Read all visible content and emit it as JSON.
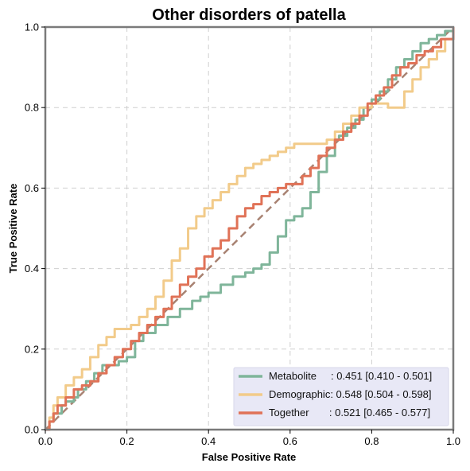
{
  "chart_data": {
    "type": "line",
    "title": "Other disorders of patella",
    "xlabel": "False Positive Rate",
    "ylabel": "True Positive Rate",
    "xlim": [
      0,
      1
    ],
    "ylim": [
      0,
      1
    ],
    "xticks": [
      "0.0",
      "0.2",
      "0.4",
      "0.6",
      "0.8",
      "1.0"
    ],
    "yticks": [
      "0.0",
      "0.2",
      "0.4",
      "0.6",
      "0.8",
      "1.0"
    ],
    "grid": true,
    "legend_position": "lower-right",
    "diagonal": {
      "x": [
        0,
        1
      ],
      "y": [
        0,
        1
      ],
      "color": "#a88272",
      "style": "dashed"
    },
    "series": [
      {
        "name": "Metabolite",
        "legend_text": "Metabolite     : 0.451 [0.410 - 0.501]",
        "color": "#7fb59a",
        "x": [
          0.0,
          0.01,
          0.02,
          0.04,
          0.05,
          0.07,
          0.08,
          0.1,
          0.12,
          0.14,
          0.16,
          0.18,
          0.2,
          0.22,
          0.24,
          0.27,
          0.3,
          0.33,
          0.36,
          0.38,
          0.4,
          0.43,
          0.46,
          0.49,
          0.51,
          0.53,
          0.55,
          0.57,
          0.59,
          0.61,
          0.63,
          0.65,
          0.67,
          0.69,
          0.71,
          0.72,
          0.74,
          0.76,
          0.78,
          0.8,
          0.82,
          0.84,
          0.86,
          0.88,
          0.9,
          0.92,
          0.94,
          0.96,
          0.98,
          1.0
        ],
        "y": [
          0.0,
          0.02,
          0.04,
          0.06,
          0.07,
          0.08,
          0.1,
          0.12,
          0.14,
          0.16,
          0.16,
          0.17,
          0.18,
          0.22,
          0.24,
          0.26,
          0.28,
          0.3,
          0.32,
          0.33,
          0.34,
          0.36,
          0.38,
          0.39,
          0.4,
          0.41,
          0.44,
          0.48,
          0.52,
          0.53,
          0.55,
          0.59,
          0.64,
          0.68,
          0.72,
          0.73,
          0.75,
          0.77,
          0.8,
          0.82,
          0.84,
          0.87,
          0.9,
          0.92,
          0.94,
          0.96,
          0.97,
          0.98,
          0.99,
          1.0
        ]
      },
      {
        "name": "Demographic",
        "legend_text": "Demographic: 0.548 [0.504 - 0.598]",
        "color": "#f2cb8a",
        "x": [
          0.0,
          0.01,
          0.02,
          0.03,
          0.05,
          0.07,
          0.09,
          0.11,
          0.13,
          0.15,
          0.17,
          0.19,
          0.21,
          0.23,
          0.25,
          0.27,
          0.29,
          0.31,
          0.33,
          0.35,
          0.37,
          0.39,
          0.41,
          0.43,
          0.45,
          0.47,
          0.49,
          0.51,
          0.53,
          0.55,
          0.57,
          0.59,
          0.61,
          0.63,
          0.65,
          0.67,
          0.69,
          0.71,
          0.73,
          0.75,
          0.77,
          0.8,
          0.82,
          0.84,
          0.86,
          0.88,
          0.9,
          0.92,
          0.94,
          0.96,
          0.98,
          1.0
        ],
        "y": [
          0.0,
          0.03,
          0.06,
          0.08,
          0.11,
          0.13,
          0.15,
          0.18,
          0.21,
          0.23,
          0.25,
          0.25,
          0.26,
          0.28,
          0.3,
          0.33,
          0.37,
          0.42,
          0.45,
          0.5,
          0.53,
          0.55,
          0.57,
          0.59,
          0.61,
          0.63,
          0.65,
          0.66,
          0.67,
          0.68,
          0.69,
          0.7,
          0.71,
          0.71,
          0.71,
          0.71,
          0.72,
          0.74,
          0.76,
          0.78,
          0.8,
          0.81,
          0.81,
          0.8,
          0.8,
          0.84,
          0.87,
          0.9,
          0.92,
          0.94,
          0.97,
          1.0
        ]
      },
      {
        "name": "Together",
        "legend_text": "Together       : 0.521 [0.465 - 0.577]",
        "color": "#e07257",
        "x": [
          0.0,
          0.01,
          0.02,
          0.03,
          0.05,
          0.07,
          0.09,
          0.11,
          0.13,
          0.15,
          0.17,
          0.19,
          0.21,
          0.23,
          0.25,
          0.27,
          0.29,
          0.31,
          0.33,
          0.35,
          0.37,
          0.39,
          0.41,
          0.43,
          0.45,
          0.47,
          0.49,
          0.51,
          0.53,
          0.55,
          0.57,
          0.59,
          0.61,
          0.63,
          0.65,
          0.67,
          0.69,
          0.71,
          0.73,
          0.75,
          0.77,
          0.79,
          0.81,
          0.83,
          0.85,
          0.87,
          0.89,
          0.91,
          0.93,
          0.95,
          0.97,
          1.0
        ],
        "y": [
          0.0,
          0.02,
          0.04,
          0.06,
          0.08,
          0.1,
          0.11,
          0.12,
          0.14,
          0.16,
          0.18,
          0.2,
          0.22,
          0.24,
          0.26,
          0.28,
          0.3,
          0.33,
          0.36,
          0.38,
          0.4,
          0.43,
          0.45,
          0.47,
          0.5,
          0.53,
          0.55,
          0.56,
          0.58,
          0.59,
          0.6,
          0.61,
          0.61,
          0.63,
          0.65,
          0.68,
          0.7,
          0.72,
          0.74,
          0.76,
          0.78,
          0.81,
          0.83,
          0.85,
          0.88,
          0.9,
          0.91,
          0.93,
          0.94,
          0.95,
          0.97,
          1.0
        ]
      }
    ]
  }
}
